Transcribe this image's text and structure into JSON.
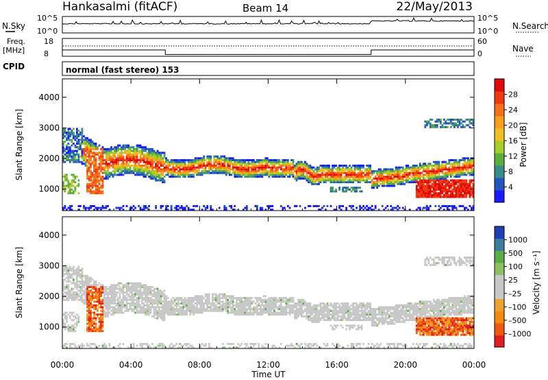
{
  "header": {
    "station": "Hankasalmi (fitACF)",
    "beam": "Beam 14",
    "date": "22/May/2013"
  },
  "top_panels": {
    "nsky": {
      "label": "N.Sky",
      "ticks": [
        "10^5",
        "10^0"
      ],
      "right_label": "N.Search",
      "right_ticks": [
        "10^5",
        "10^0"
      ]
    },
    "freq": {
      "label_line1": "Freq.",
      "label_line2": "[MHz]",
      "ticks": [
        "18",
        "8"
      ],
      "right_label": "Nave",
      "right_ticks": [
        "60",
        "0"
      ],
      "step_times_h": [
        0,
        6,
        18,
        24
      ],
      "step_levels": [
        0.35,
        0.1,
        0.35
      ]
    },
    "cpid": {
      "label": "CPID",
      "text": "normal (fast stereo) 153"
    }
  },
  "chart_data": [
    {
      "type": "heatmap",
      "ylabel": "Slant Range [km]",
      "ylim": [
        300,
        4600
      ],
      "yticks": [
        "1000",
        "2000",
        "3000",
        "4000"
      ],
      "colorbar": {
        "label": "Power [dB]",
        "ticks": [
          "4",
          "8",
          "12",
          "16",
          "20",
          "24",
          "28"
        ],
        "colors": [
          "#1a1aff",
          "#2255c0",
          "#3b8a8a",
          "#5cae3e",
          "#a8cc2a",
          "#f0c020",
          "#f7a020",
          "#f57018",
          "#f03a14",
          "#e00a0a"
        ]
      }
    },
    {
      "type": "heatmap",
      "ylabel": "Slant Range [km]",
      "ylim": [
        300,
        4600
      ],
      "yticks": [
        "1000",
        "2000",
        "3000",
        "4000"
      ],
      "xlabel": "Time UT",
      "xticks": [
        "00:00",
        "04:00",
        "08:00",
        "12:00",
        "16:00",
        "20:00",
        "00:00"
      ],
      "colorbar": {
        "label": "Velocity [m s⁻¹]",
        "ticks": [
          "1000",
          "500",
          "100",
          "25",
          "–25",
          "–100",
          "–500",
          "–1000"
        ],
        "colors": [
          "#e02020",
          "#f05a10",
          "#f58a10",
          "#f0a030",
          "#c8c8c8",
          "#c8c8c8",
          "#8dc060",
          "#5aac44",
          "#3a7ea0",
          "#2040b0"
        ]
      }
    }
  ]
}
